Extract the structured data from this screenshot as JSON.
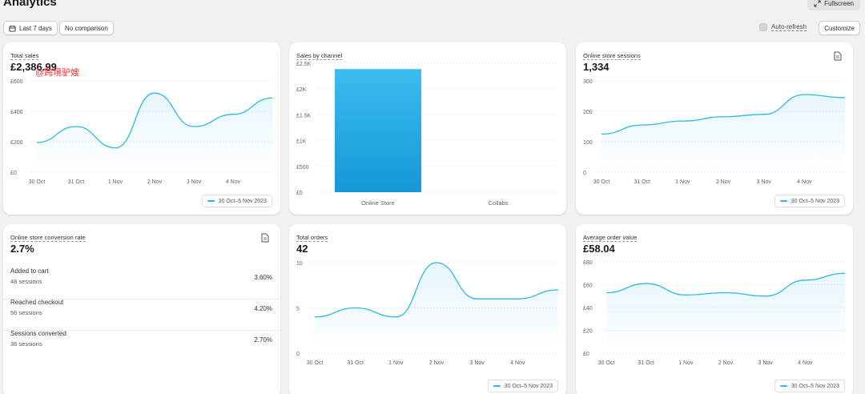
{
  "header": {
    "title": "Analytics",
    "fullscreen_label": "Fullscreen"
  },
  "toolbar": {
    "date_range_label": "Last 7 days",
    "comparison_label": "No comparison",
    "auto_refresh_label": "Auto-refresh",
    "customize_label": "Customize"
  },
  "watermark": "@跨境驴嫂",
  "accent_color": "#2fb8e6",
  "cards": {
    "total_sales": {
      "label": "Total sales",
      "value": "£2,386.99",
      "legend": "30 Oct–5 Nov 2023",
      "chart_data": {
        "type": "line",
        "x": [
          "30 Oct",
          "31 Oct",
          "1 Nov",
          "2 Nov",
          "3 Nov",
          "4 Nov",
          "5 Nov"
        ],
        "y_tick_labels": [
          "£0",
          "£200",
          "£400",
          "£600"
        ],
        "ylim": [
          0,
          600
        ],
        "series": [
          {
            "values": [
              195,
              300,
              160,
              520,
              300,
              380,
              488
            ]
          }
        ]
      }
    },
    "sales_by_channel": {
      "label": "Sales by channel",
      "chart_data": {
        "type": "bar",
        "categories": [
          "Online Store",
          "Collabs"
        ],
        "values": [
          2386.99,
          0
        ],
        "y_tick_labels": [
          "£0",
          "£500",
          "£1K",
          "£1.5K",
          "£2K",
          "£2.5K"
        ],
        "ylim": [
          0,
          2500
        ]
      }
    },
    "sessions": {
      "label": "Online store sessions",
      "value": "1,334",
      "legend": "30 Oct–5 Nov 2023",
      "chart_data": {
        "type": "line",
        "x": [
          "30 Oct",
          "31 Oct",
          "1 Nov",
          "2 Nov",
          "3 Nov",
          "4 Nov",
          "5 Nov"
        ],
        "y_tick_labels": [
          "0",
          "100",
          "200",
          "300"
        ],
        "ylim": [
          0,
          300
        ],
        "series": [
          {
            "values": [
              125,
              155,
              168,
              182,
              190,
              255,
              245
            ]
          }
        ]
      }
    },
    "conversion": {
      "label": "Online store conversion rate",
      "value": "2.7%",
      "rows": [
        {
          "name": "Added to cart",
          "sub": "48 sessions",
          "pct": "3.60%"
        },
        {
          "name": "Reached checkout",
          "sub": "56 sessions",
          "pct": "4.20%"
        },
        {
          "name": "Sessions converted",
          "sub": "36 sessions",
          "pct": "2.70%"
        }
      ]
    },
    "total_orders": {
      "label": "Total orders",
      "value": "42",
      "legend": "30 Oct–5 Nov 2023",
      "chart_data": {
        "type": "line",
        "x": [
          "30 Oct",
          "31 Oct",
          "1 Nov",
          "2 Nov",
          "3 Nov",
          "4 Nov",
          "5 Nov"
        ],
        "y_tick_labels": [
          "0",
          "5",
          "10"
        ],
        "ylim": [
          0,
          10
        ],
        "series": [
          {
            "values": [
              4,
              5,
              4,
              10,
              6,
              6,
              7
            ]
          }
        ]
      }
    },
    "aov": {
      "label": "Average order value",
      "value": "£58.04",
      "legend": "30 Oct–5 Nov 2023",
      "chart_data": {
        "type": "line",
        "x": [
          "30 Oct",
          "31 Oct",
          "1 Nov",
          "2 Nov",
          "3 Nov",
          "4 Nov",
          "5 Nov"
        ],
        "y_tick_labels": [
          "£0",
          "£20",
          "£40",
          "£60",
          "£80"
        ],
        "ylim": [
          0,
          80
        ],
        "series": [
          {
            "values": [
              53,
              61,
              51,
              53,
              50,
              64,
              70
            ]
          }
        ]
      }
    }
  }
}
